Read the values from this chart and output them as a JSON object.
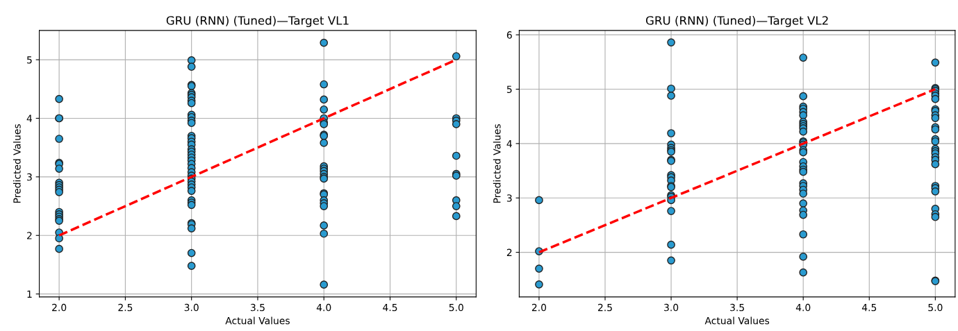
{
  "chart_data": [
    {
      "type": "scatter",
      "title": "GRU (RNN) (Tuned)—Target VL1",
      "xlabel": "Actual Values",
      "ylabel": "Predicted Values",
      "xlim": [
        1.85,
        5.15
      ],
      "ylim": [
        0.95,
        5.5
      ],
      "xticks": [
        {
          "value": 2,
          "label": "2.0"
        },
        {
          "value": 2.5,
          "label": "2.5"
        },
        {
          "value": 3,
          "label": "3.0"
        },
        {
          "value": 3.5,
          "label": "3.5"
        },
        {
          "value": 4,
          "label": "4.0"
        },
        {
          "value": 4.5,
          "label": "4.5"
        },
        {
          "value": 5,
          "label": "5.0"
        }
      ],
      "yticks": [
        1,
        2,
        3,
        4,
        5
      ],
      "grid": true,
      "marker": "circle",
      "series": [
        {
          "color": "#2a9bd0",
          "x": [
            2,
            2,
            2,
            2,
            2,
            2,
            2,
            2,
            2,
            2,
            2,
            2,
            2,
            2,
            2,
            2,
            2,
            2,
            2,
            2,
            3,
            3,
            3,
            3,
            3,
            3,
            3,
            3,
            3,
            3,
            3,
            3,
            3,
            3,
            3,
            3,
            3,
            3,
            3,
            3,
            3,
            3,
            3,
            3,
            3,
            3,
            3,
            3,
            3,
            3,
            3,
            3,
            3,
            3,
            3,
            3,
            3,
            3,
            3,
            4,
            4,
            4,
            4,
            4,
            4,
            4,
            4,
            4,
            4,
            4,
            4,
            4,
            4,
            4,
            4,
            4,
            4,
            4,
            4,
            4,
            4,
            4,
            4,
            5,
            5,
            5,
            5,
            5,
            5,
            5,
            5,
            5,
            5
          ],
          "values": [
            4.33,
            4.0,
            4.0,
            3.65,
            3.24,
            3.22,
            3.14,
            2.9,
            2.86,
            2.82,
            2.78,
            2.74,
            2.4,
            2.36,
            2.32,
            2.28,
            2.25,
            2.05,
            1.95,
            1.77,
            4.99,
            4.88,
            4.57,
            4.55,
            4.43,
            4.4,
            4.36,
            4.3,
            4.26,
            4.06,
            4.02,
            3.96,
            3.92,
            3.7,
            3.66,
            3.6,
            3.55,
            3.47,
            3.43,
            3.38,
            3.33,
            3.28,
            3.22,
            3.15,
            3.08,
            3.02,
            2.97,
            2.92,
            2.87,
            2.82,
            2.76,
            2.6,
            2.56,
            2.52,
            2.21,
            2.19,
            2.12,
            1.7,
            1.48,
            5.29,
            4.58,
            4.32,
            4.15,
            4.0,
            3.93,
            3.9,
            3.72,
            3.7,
            3.58,
            3.18,
            3.14,
            3.1,
            3.05,
            3.0,
            2.97,
            2.72,
            2.7,
            2.6,
            2.55,
            2.5,
            2.17,
            2.03,
            1.16,
            5.06,
            4.0,
            3.96,
            3.9,
            3.36,
            3.05,
            3.02,
            2.6,
            2.5,
            2.33
          ]
        },
        {
          "type": "line",
          "color": "#ff0000",
          "line_style": "dashed",
          "marker": "none",
          "x": [
            2,
            5
          ],
          "values": [
            2,
            5
          ]
        }
      ]
    },
    {
      "type": "scatter",
      "title": "GRU (RNN) (Tuned)—Target VL2",
      "xlabel": "Actual Values",
      "ylabel": "Predicted Values",
      "xlim": [
        1.85,
        5.15
      ],
      "ylim": [
        1.18,
        6.08
      ],
      "xticks": [
        {
          "value": 2,
          "label": "2.0"
        },
        {
          "value": 2.5,
          "label": "2.5"
        },
        {
          "value": 3,
          "label": "3.0"
        },
        {
          "value": 3.5,
          "label": "3.5"
        },
        {
          "value": 4,
          "label": "4.0"
        },
        {
          "value": 4.5,
          "label": "4.5"
        },
        {
          "value": 5,
          "label": "5.0"
        }
      ],
      "yticks": [
        2,
        3,
        4,
        5,
        6
      ],
      "grid": true,
      "marker": "circle",
      "series": [
        {
          "color": "#2a9bd0",
          "x": [
            2,
            2,
            2,
            2,
            3,
            3,
            3,
            3,
            3,
            3,
            3,
            3,
            3,
            3,
            3,
            3,
            3,
            3,
            3,
            3,
            3,
            3,
            3,
            3,
            3,
            4,
            4,
            4,
            4,
            4,
            4,
            4,
            4,
            4,
            4,
            4,
            4,
            4,
            4,
            4,
            4,
            4,
            4,
            4,
            4,
            4,
            4,
            4,
            4,
            4,
            4,
            4,
            4,
            4,
            4,
            5,
            5,
            5,
            5,
            5,
            5,
            5,
            5,
            5,
            5,
            5,
            5,
            5,
            5,
            5,
            5,
            5,
            5,
            5,
            5,
            5,
            5,
            5,
            5,
            5,
            5,
            5,
            5,
            5
          ],
          "values": [
            2.96,
            2.02,
            1.7,
            1.41,
            5.86,
            5.01,
            4.88,
            4.19,
            3.98,
            3.92,
            3.88,
            3.85,
            3.7,
            3.68,
            3.42,
            3.38,
            3.32,
            3.22,
            3.2,
            3.05,
            3.02,
            2.96,
            2.76,
            2.14,
            1.85,
            5.58,
            4.87,
            4.68,
            4.64,
            4.58,
            4.52,
            4.4,
            4.36,
            4.32,
            4.28,
            4.22,
            4.04,
            4.02,
            3.98,
            3.88,
            3.84,
            3.66,
            3.58,
            3.52,
            3.48,
            3.27,
            3.22,
            3.15,
            3.08,
            2.9,
            2.77,
            2.69,
            2.33,
            1.92,
            1.63,
            5.49,
            5.02,
            5.0,
            4.97,
            4.92,
            4.88,
            4.82,
            4.63,
            4.6,
            4.52,
            4.47,
            4.3,
            4.26,
            4.08,
            4.04,
            3.9,
            3.86,
            3.82,
            3.75,
            3.7,
            3.62,
            3.22,
            3.18,
            3.12,
            2.8,
            2.7,
            2.65,
            1.48,
            1.47
          ]
        },
        {
          "type": "line",
          "color": "#ff0000",
          "line_style": "dashed",
          "marker": "none",
          "x": [
            2,
            5
          ],
          "values": [
            2,
            5
          ]
        }
      ]
    }
  ]
}
